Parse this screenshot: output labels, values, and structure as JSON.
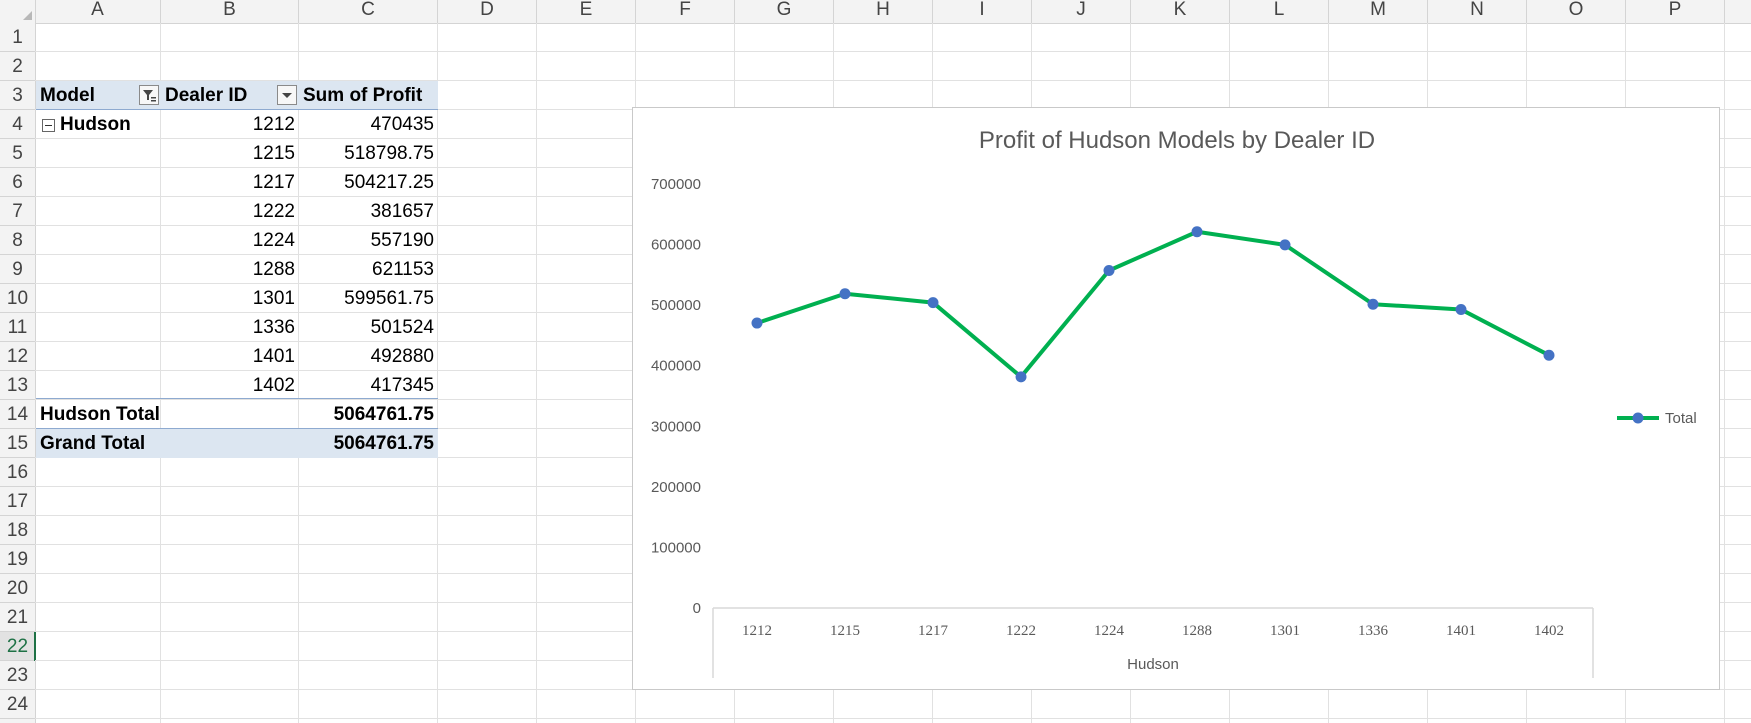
{
  "columns": [
    "A",
    "B",
    "C",
    "D",
    "E",
    "F",
    "G",
    "H",
    "I",
    "J",
    "K",
    "L",
    "M",
    "N",
    "O",
    "P"
  ],
  "rows": [
    "1",
    "2",
    "3",
    "4",
    "5",
    "6",
    "7",
    "8",
    "9",
    "10",
    "11",
    "12",
    "13",
    "14",
    "15",
    "16",
    "17",
    "18",
    "19",
    "20",
    "21",
    "22",
    "23",
    "24"
  ],
  "selected_row": "22",
  "pivot": {
    "header": {
      "model": "Model",
      "dealer_id": "Dealer ID",
      "sum_profit": "Sum of Profit"
    },
    "group_label": "Hudson",
    "rows": [
      {
        "dealer": "1212",
        "profit": "470435"
      },
      {
        "dealer": "1215",
        "profit": "518798.75"
      },
      {
        "dealer": "1217",
        "profit": "504217.25"
      },
      {
        "dealer": "1222",
        "profit": "381657"
      },
      {
        "dealer": "1224",
        "profit": "557190"
      },
      {
        "dealer": "1288",
        "profit": "621153"
      },
      {
        "dealer": "1301",
        "profit": "599561.75"
      },
      {
        "dealer": "1336",
        "profit": "501524"
      },
      {
        "dealer": "1401",
        "profit": "492880"
      },
      {
        "dealer": "1402",
        "profit": "417345"
      }
    ],
    "subtotal_label": "Hudson Total",
    "subtotal_value": "5064761.75",
    "grand_total_label": "Grand Total",
    "grand_total_value": "5064761.75"
  },
  "chart_data": {
    "type": "line",
    "title": "Profit of Hudson Models by Dealer ID",
    "categories": [
      "1212",
      "1215",
      "1217",
      "1222",
      "1224",
      "1288",
      "1301",
      "1336",
      "1401",
      "1402"
    ],
    "category_group": "Hudson",
    "series": [
      {
        "name": "Total",
        "values": [
          470435,
          518798.75,
          504217.25,
          381657,
          557190,
          621153,
          599561.75,
          501524,
          492880,
          417345
        ]
      }
    ],
    "ylim": [
      0,
      700000
    ],
    "yticks": [
      "0",
      "100000",
      "200000",
      "300000",
      "400000",
      "500000",
      "600000",
      "700000"
    ],
    "legend_position": "right",
    "line_color": "#00b050",
    "marker_color": "#4472c4"
  }
}
